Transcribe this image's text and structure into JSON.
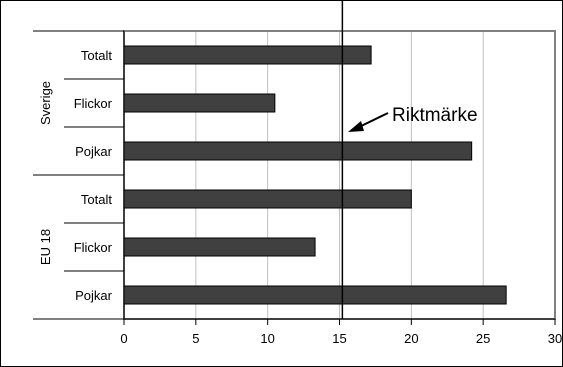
{
  "chart_data": {
    "type": "bar",
    "orientation": "horizontal",
    "title": "",
    "xlabel": "",
    "ylabel": "",
    "xlim": [
      0,
      30
    ],
    "x_ticks": [
      0,
      5,
      10,
      15,
      20,
      25,
      30
    ],
    "x_tick_labels": [
      "0",
      "5",
      "10",
      "15",
      "20",
      "25",
      "30"
    ],
    "grid": "vertical",
    "legend": "none",
    "groups": [
      {
        "label": "Sverige",
        "categories": [
          "Totalt",
          "Flickor",
          "Pojkar"
        ],
        "values": [
          17.2,
          10.5,
          24.2
        ]
      },
      {
        "label": "EU 18",
        "categories": [
          "Totalt",
          "Flickor",
          "Pojkar"
        ],
        "values": [
          20.0,
          13.3,
          26.6
        ]
      }
    ],
    "reference_line": {
      "value": 15.2,
      "label": "Riktmärke"
    },
    "colors": {
      "bar_fill": "#404040",
      "bar_stroke": "#000000",
      "grid": "#c0c0c0",
      "plot_border": "#808080"
    }
  }
}
